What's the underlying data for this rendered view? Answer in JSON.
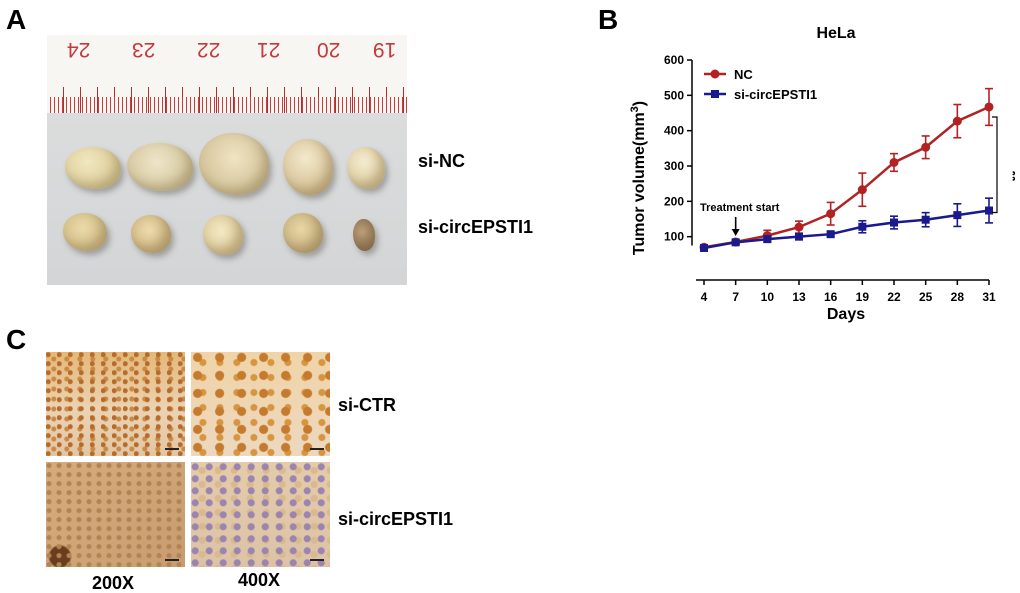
{
  "panels": {
    "A": {
      "letter": "A",
      "ruler_numbers": [
        "24",
        "23",
        "22",
        "21",
        "20",
        "19"
      ],
      "row_labels": [
        "si-NC",
        "si-circEPSTI1"
      ]
    },
    "B": {
      "letter": "B"
    },
    "C": {
      "letter": "C",
      "row_labels": [
        "si-CTR",
        "si-circEPSTI1"
      ],
      "col_labels": [
        "200X",
        "400X"
      ]
    }
  },
  "chart_data": {
    "type": "line",
    "title": "HeLa",
    "xlabel": "Days",
    "ylabel": "Tumor volume(mm",
    "ylabel_sup": "3",
    "ylabel_close": ")",
    "x": [
      4,
      7,
      10,
      13,
      16,
      19,
      22,
      25,
      28,
      31
    ],
    "ylim": [
      0,
      600
    ],
    "yticks": [
      100,
      200,
      300,
      400,
      500,
      600
    ],
    "series": [
      {
        "name": "NC",
        "color": "#b22222",
        "marker": "circle",
        "values": [
          70,
          85,
          103,
          127,
          165,
          233,
          310,
          353,
          427,
          467
        ],
        "errors": [
          5,
          6,
          15,
          17,
          32,
          47,
          25,
          32,
          47,
          52
        ]
      },
      {
        "name": "si-circEPSTI1",
        "color": "#1a1a8c",
        "marker": "square",
        "values": [
          68,
          84,
          93,
          100,
          107,
          128,
          140,
          148,
          161,
          174
        ],
        "errors": [
          5,
          5,
          8,
          7,
          7,
          17,
          18,
          20,
          32,
          35
        ]
      }
    ],
    "annotations": {
      "treatment_label": "Treatment start",
      "treatment_day": 7,
      "significance": "**"
    },
    "legend": "top-left"
  }
}
